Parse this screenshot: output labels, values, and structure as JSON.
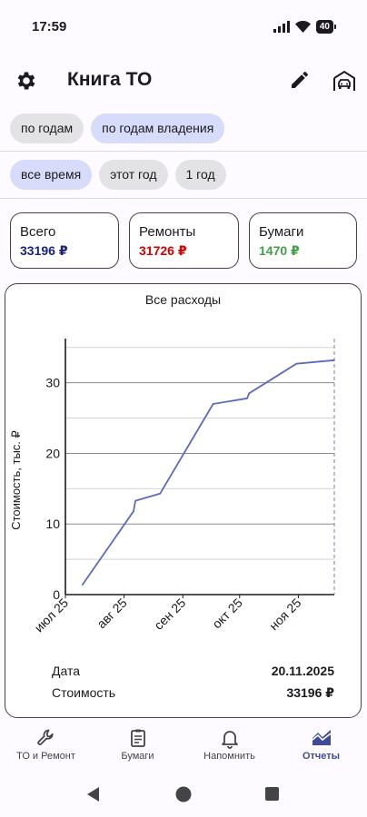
{
  "status": {
    "time": "17:59",
    "battery": "40"
  },
  "header": {
    "title": "Книга ТО"
  },
  "grouping_tabs": [
    {
      "label": "по годам",
      "active": false
    },
    {
      "label": "по годам владения",
      "active": true
    }
  ],
  "period_tabs": [
    {
      "label": "все время",
      "active": true
    },
    {
      "label": "этот год",
      "active": false
    },
    {
      "label": "1 год",
      "active": false
    }
  ],
  "stats": {
    "total": {
      "label": "Всего",
      "value": "33196 ₽",
      "color": "#1a237e"
    },
    "repairs": {
      "label": "Ремонты",
      "value": "31726 ₽",
      "color": "#d50000"
    },
    "papers": {
      "label": "Бумаги",
      "value": "1470 ₽",
      "color": "#43a047"
    }
  },
  "chart_card": {
    "selection": {
      "date_label": "Дата",
      "date_value": "20.11.2025",
      "cost_label": "Стоимость",
      "cost_value": "33196 ₽"
    }
  },
  "chart_data": {
    "type": "line",
    "title": "Все расходы",
    "xlabel": "",
    "ylabel": "Стоимость, тыс. ₽",
    "x_ticks": [
      "июл 25",
      "авг 25",
      "сен 25",
      "окт 25",
      "ноя 25"
    ],
    "y_ticks": [
      0,
      10,
      20,
      30
    ],
    "ylim": [
      0,
      36
    ],
    "xlim": [
      "2025-07-01",
      "2025-11-20"
    ],
    "grid": true,
    "line_color": "#5c6bc0",
    "series": [
      {
        "x": [
          "2025-07-10",
          "2025-08-06",
          "2025-08-07",
          "2025-08-20",
          "2025-09-17",
          "2025-10-05",
          "2025-10-06",
          "2025-10-31",
          "2025-11-20"
        ],
        "y": [
          1.4,
          11.8,
          13.3,
          14.3,
          27.0,
          27.8,
          28.5,
          32.7,
          33.2
        ]
      }
    ],
    "selected_x": "2025-11-20"
  },
  "bottom_nav": [
    {
      "label": "ТО и Ремонт",
      "icon": "wrench-icon",
      "active": false
    },
    {
      "label": "Бумаги",
      "icon": "clipboard-icon",
      "active": false
    },
    {
      "label": "Напомнить",
      "icon": "bell-icon",
      "active": false
    },
    {
      "label": "Отчеты",
      "icon": "chart-icon",
      "active": true
    }
  ],
  "colors": {
    "accent": "#3f4a9a",
    "chip_active": "#d6dcf9",
    "chip": "#e3e3e5"
  }
}
